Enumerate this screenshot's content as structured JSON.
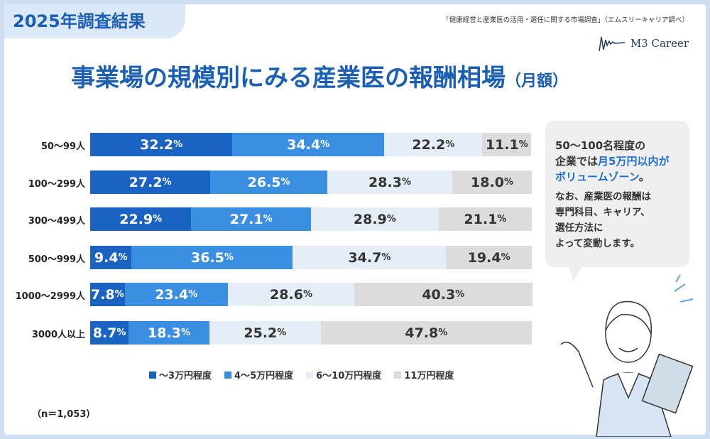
{
  "badge": "2025年調査結果",
  "source": "「健康経営と産業医の活用・選任に関する市場調査」（エムスリーキャリア調べ）",
  "logo": "M3 Career",
  "title": "事業場の規模別にみる産業医の報酬相場",
  "title_suffix": "（月額）",
  "sample_note": "（n＝1,053）",
  "callout": {
    "l1": "50〜100名程度の",
    "l2a": "企業では",
    "l2b": "月5万円以内が",
    "l3a": "ボリュームゾーン",
    "l3b": "。",
    "body": [
      "なお、産業医の報酬は",
      "専門科目、キャリア、",
      "選任方法に",
      "よって変動します。"
    ]
  },
  "colors": [
    "#1a63c2",
    "#3b8fe2",
    "#e5edf6",
    "#dcdcdc"
  ],
  "chart_data": {
    "type": "bar",
    "stacked": true,
    "orientation": "horizontal",
    "unit": "%",
    "categories": [
      "50〜99人",
      "100〜299人",
      "300〜499人",
      "500〜999人",
      "1000〜2999人",
      "3000人以上"
    ],
    "series": [
      {
        "name": "〜3万円程度",
        "values": [
          32.2,
          27.2,
          22.9,
          9.4,
          7.8,
          8.7
        ]
      },
      {
        "name": "4〜5万円程度",
        "values": [
          34.4,
          26.5,
          27.1,
          36.5,
          23.4,
          18.3
        ]
      },
      {
        "name": "6〜10万円程度",
        "values": [
          22.2,
          28.3,
          28.9,
          34.7,
          28.6,
          25.2
        ]
      },
      {
        "name": "11万円程度",
        "values": [
          11.1,
          18.0,
          21.1,
          19.4,
          40.3,
          47.8
        ]
      }
    ],
    "xlim": [
      0,
      100
    ],
    "legend": "bottom"
  }
}
